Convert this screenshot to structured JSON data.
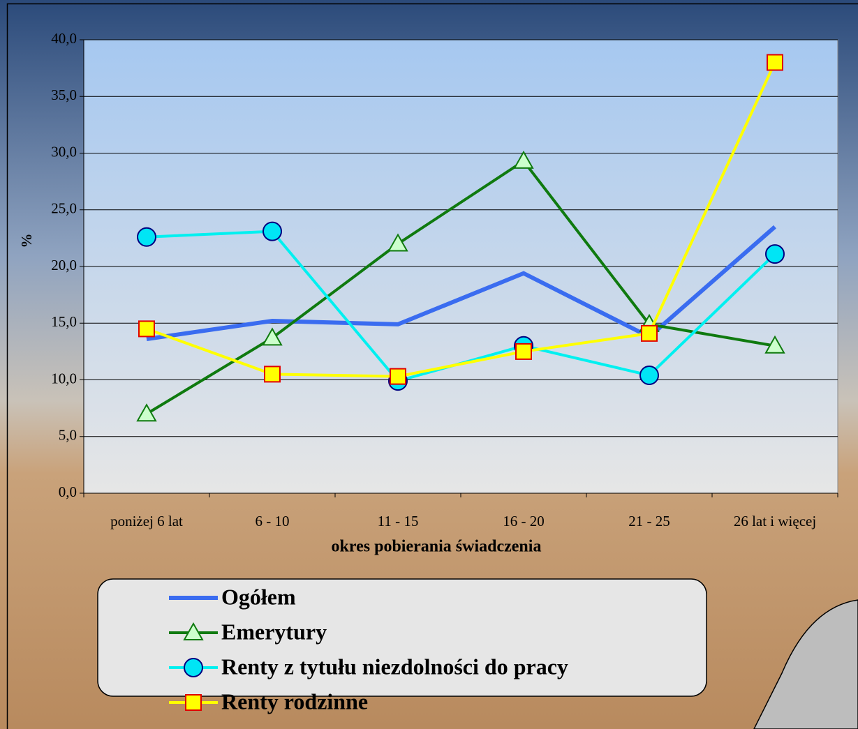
{
  "chart_data": {
    "type": "line",
    "categories": [
      "poniżej 6 lat",
      "6 - 10",
      "11 - 15",
      "16 - 20",
      "21 - 25",
      "26 lat i więcej"
    ],
    "series": [
      {
        "name": "Ogółem",
        "color": "#3a6cf0",
        "marker": "none",
        "values": [
          13.6,
          15.2,
          14.9,
          19.4,
          13.8,
          23.5
        ]
      },
      {
        "name": "Emerytury",
        "color": "#0f7a0f",
        "marker": "triangle",
        "values": [
          7.0,
          13.7,
          22.0,
          29.3,
          14.9,
          13.0
        ]
      },
      {
        "name": "Renty z tytułu niezdolności do pracy",
        "color": "#00f0f0",
        "marker": "circle",
        "values": [
          22.6,
          23.1,
          9.9,
          13.0,
          10.4,
          21.1
        ]
      },
      {
        "name": "Renty rodzinne",
        "color": "#ffff00",
        "marker": "square",
        "values": [
          14.5,
          10.5,
          10.3,
          12.5,
          14.1,
          38.0
        ]
      }
    ],
    "ylabel": "%",
    "xlabel": "okres pobierania świadczenia",
    "ylim": [
      0,
      40
    ],
    "yticks": [
      {
        "value": 0,
        "label": "0,0"
      },
      {
        "value": 5,
        "label": "5,0"
      },
      {
        "value": 10,
        "label": "10,0"
      },
      {
        "value": 15,
        "label": "15,0"
      },
      {
        "value": 20,
        "label": "20,0"
      },
      {
        "value": 25,
        "label": "25,0"
      },
      {
        "value": 30,
        "label": "30,0"
      },
      {
        "value": 35,
        "label": "35,0"
      },
      {
        "value": 40,
        "label": "40,0"
      }
    ],
    "grid": true
  }
}
